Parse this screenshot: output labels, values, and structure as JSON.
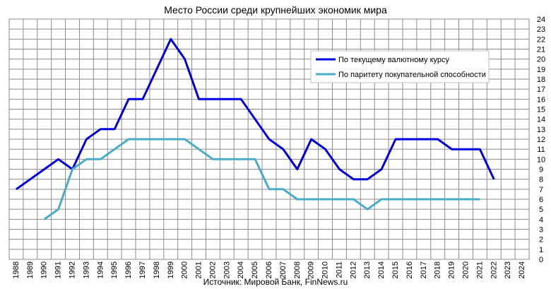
{
  "chart_data": {
    "type": "line",
    "title": "Место России среди крупнейших экономик мира",
    "source": "Источник: Мировой Банк, FinNews.ru",
    "x": [
      1988,
      1989,
      1990,
      1991,
      1992,
      1993,
      1994,
      1995,
      1996,
      1997,
      1998,
      1999,
      2000,
      2001,
      2002,
      2003,
      2004,
      2005,
      2006,
      2007,
      2008,
      2009,
      2010,
      2011,
      2012,
      2013,
      2014,
      2015,
      2016,
      2017,
      2018,
      2019,
      2020,
      2021,
      2022,
      2023,
      2024
    ],
    "y_ticks": [
      0,
      1,
      2,
      3,
      4,
      5,
      6,
      7,
      8,
      9,
      10,
      11,
      12,
      13,
      14,
      15,
      16,
      17,
      18,
      19,
      20,
      21,
      22,
      23,
      24
    ],
    "ylim": [
      0,
      24
    ],
    "y_axis_side": "right",
    "grid": true,
    "legend_position": "top-right",
    "series": [
      {
        "name": "По текущему валютному курсу",
        "color": "#0000e0",
        "values": [
          7,
          8,
          9,
          10,
          9,
          12,
          13,
          13,
          16,
          16,
          19,
          22,
          20,
          16,
          16,
          16,
          16,
          14,
          12,
          11,
          9,
          12,
          11,
          9,
          8,
          8,
          9,
          12,
          12,
          12,
          12,
          11,
          11,
          11,
          8,
          null,
          null
        ]
      },
      {
        "name": "По паритету покупательной способности",
        "color": "#4aacc6",
        "values": [
          null,
          null,
          4,
          5,
          9,
          10,
          10,
          11,
          12,
          12,
          12,
          12,
          12,
          11,
          10,
          10,
          10,
          10,
          7,
          7,
          6,
          6,
          6,
          6,
          6,
          5,
          6,
          6,
          6,
          6,
          6,
          6,
          6,
          6,
          null,
          null,
          null
        ]
      }
    ]
  }
}
